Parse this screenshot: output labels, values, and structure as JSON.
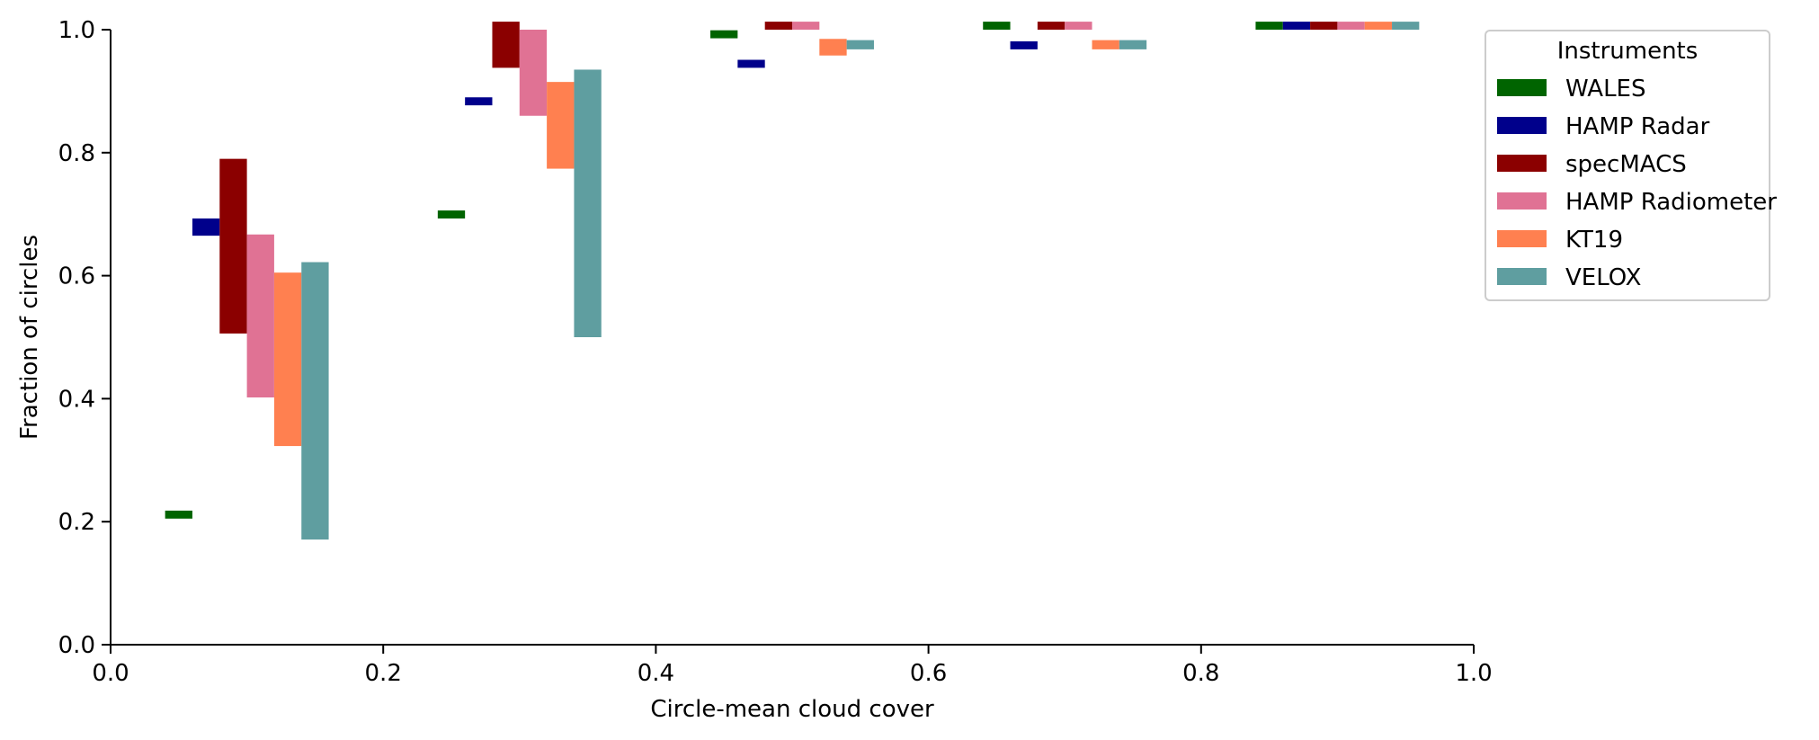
{
  "chart_data": {
    "type": "bar",
    "subtype": "floating-range-bars",
    "xlabel": "Circle-mean cloud cover",
    "ylabel": "Fraction of circles",
    "xlim": [
      0.0,
      1.0
    ],
    "ylim": [
      0.0,
      1.0
    ],
    "xticks": [
      "0.0",
      "0.2",
      "0.4",
      "0.6",
      "0.8",
      "1.0"
    ],
    "yticks": [
      "0.0",
      "0.2",
      "0.4",
      "0.6",
      "0.8",
      "1.0"
    ],
    "grid": false,
    "legend": {
      "title": "Instruments",
      "placement": "top-right-outside"
    },
    "bins": [
      {
        "range": [
          0.04,
          0.16
        ]
      },
      {
        "range": [
          0.24,
          0.36
        ]
      },
      {
        "range": [
          0.44,
          0.56
        ]
      },
      {
        "range": [
          0.64,
          0.76
        ]
      },
      {
        "range": [
          0.84,
          0.96
        ]
      }
    ],
    "series": [
      {
        "name": "WALES",
        "color": "#006400",
        "ranges": [
          [
            0.205,
            0.218
          ],
          [
            0.693,
            0.706
          ],
          [
            0.986,
            0.999
          ],
          [
            1.0,
            1.013
          ],
          [
            1.0,
            1.013
          ]
        ]
      },
      {
        "name": "HAMP Radar",
        "color": "#00008b",
        "ranges": [
          [
            0.665,
            0.693
          ],
          [
            0.877,
            0.89
          ],
          [
            0.938,
            0.951
          ],
          [
            0.968,
            0.981
          ],
          [
            1.0,
            1.013
          ]
        ]
      },
      {
        "name": "specMACS",
        "color": "#8b0000",
        "ranges": [
          [
            0.506,
            0.79
          ],
          [
            0.938,
            1.013
          ],
          [
            1.0,
            1.013
          ],
          [
            1.0,
            1.013
          ],
          [
            1.0,
            1.013
          ]
        ]
      },
      {
        "name": "HAMP Radiometer",
        "color": "#e07294",
        "ranges": [
          [
            0.402,
            0.667
          ],
          [
            0.86,
            1.0
          ],
          [
            1.0,
            1.013
          ],
          [
            1.0,
            1.013
          ],
          [
            1.0,
            1.013
          ]
        ]
      },
      {
        "name": "KT19",
        "color": "#ff8050",
        "ranges": [
          [
            0.323,
            0.605
          ],
          [
            0.774,
            0.915
          ],
          [
            0.958,
            0.985
          ],
          [
            0.968,
            0.983
          ],
          [
            1.0,
            1.013
          ]
        ]
      },
      {
        "name": "VELOX",
        "color": "#5f9ea0",
        "ranges": [
          [
            0.171,
            0.622
          ],
          [
            0.5,
            0.935
          ],
          [
            0.968,
            0.983
          ],
          [
            0.968,
            0.983
          ],
          [
            1.0,
            1.013
          ]
        ]
      }
    ]
  }
}
